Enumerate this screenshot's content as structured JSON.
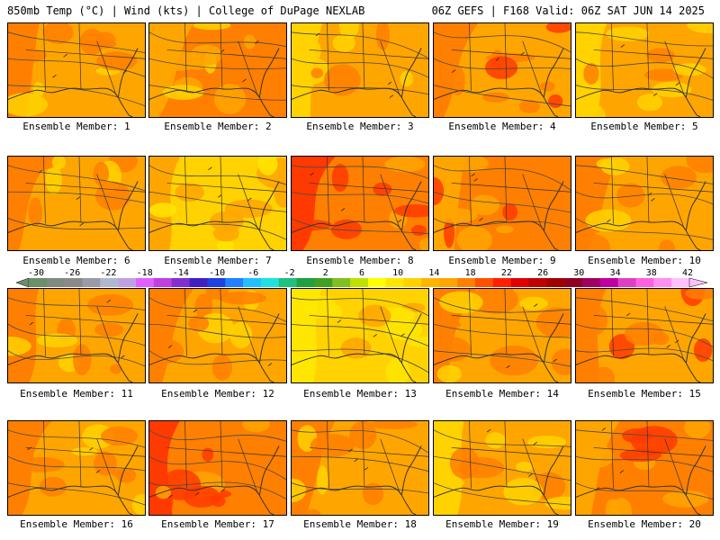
{
  "header": {
    "left": "850mb Temp (°C) | Wind (kts) | College of DuPage NEXLAB",
    "right": "06Z GEFS | F168 Valid: 06Z SAT JUN 14 2025"
  },
  "panels": [
    {
      "label": "Ensemble Member: 1",
      "palette": [
        "#ffa500",
        "#ff7f00",
        "#ffd200"
      ]
    },
    {
      "label": "Ensemble Member: 2",
      "palette": [
        "#ff7f00",
        "#ffa500",
        "#ffd200"
      ]
    },
    {
      "label": "Ensemble Member: 3",
      "palette": [
        "#ffa500",
        "#ffd200",
        "#ff7f00"
      ]
    },
    {
      "label": "Ensemble Member: 4",
      "palette": [
        "#ffa500",
        "#ff7f00",
        "#ff3a00"
      ]
    },
    {
      "label": "Ensemble Member: 5",
      "palette": [
        "#ffa500",
        "#ffd200",
        "#ff7f00"
      ]
    },
    {
      "label": "Ensemble Member: 6",
      "palette": [
        "#ffa500",
        "#ff7f00",
        "#ffd200"
      ]
    },
    {
      "label": "Ensemble Member: 7",
      "palette": [
        "#ffd200",
        "#ffa500",
        "#ffe600"
      ]
    },
    {
      "label": "Ensemble Member: 8",
      "palette": [
        "#ff7f00",
        "#ff3a00",
        "#ffa500"
      ]
    },
    {
      "label": "Ensemble Member: 9",
      "palette": [
        "#ff7f00",
        "#ffa500",
        "#ff3a00"
      ]
    },
    {
      "label": "Ensemble Member: 10",
      "palette": [
        "#ffa500",
        "#ff7f00",
        "#ffd200"
      ]
    },
    {
      "label": "Ensemble Member: 11",
      "palette": [
        "#ffa500",
        "#ff7f00",
        "#ffd200"
      ]
    },
    {
      "label": "Ensemble Member: 12",
      "palette": [
        "#ffa500",
        "#ff7f00",
        "#ffd200"
      ]
    },
    {
      "label": "Ensemble Member: 13",
      "palette": [
        "#ffd200",
        "#ffe600",
        "#ffa500"
      ]
    },
    {
      "label": "Ensemble Member: 14",
      "palette": [
        "#ffa500",
        "#ff7f00",
        "#ffd200"
      ]
    },
    {
      "label": "Ensemble Member: 15",
      "palette": [
        "#ffa500",
        "#ff7f00",
        "#ff3a00"
      ]
    },
    {
      "label": "Ensemble Member: 16",
      "palette": [
        "#ffa500",
        "#ff7f00",
        "#ffd200"
      ]
    },
    {
      "label": "Ensemble Member: 17",
      "palette": [
        "#ff7f00",
        "#ff3a00",
        "#ffa500"
      ]
    },
    {
      "label": "Ensemble Member: 18",
      "palette": [
        "#ffa500",
        "#ff7f00",
        "#ffd200"
      ]
    },
    {
      "label": "Ensemble Member: 19",
      "palette": [
        "#ffa500",
        "#ffd200",
        "#ff7f00"
      ]
    },
    {
      "label": "Ensemble Member: 20",
      "palette": [
        "#ff7f00",
        "#ffa500",
        "#ff3a00"
      ]
    }
  ],
  "colorbar": {
    "labels": [
      "-30",
      "-26",
      "-22",
      "-18",
      "-14",
      "-10",
      "-6",
      "-2",
      "2",
      "6",
      "10",
      "14",
      "18",
      "22",
      "26",
      "30",
      "34",
      "38",
      "42"
    ],
    "colors": [
      "#6b8e6b",
      "#808a80",
      "#8a8a8a",
      "#9a9aaa",
      "#b0b8d0",
      "#c0a0e0",
      "#e060ff",
      "#c040e0",
      "#8030d0",
      "#4020c0",
      "#2040e0",
      "#2080ff",
      "#20c0ff",
      "#20e0e0",
      "#20c080",
      "#20a040",
      "#40a020",
      "#80c020",
      "#c0e000",
      "#ffff00",
      "#ffe600",
      "#ffd200",
      "#ffb400",
      "#ffa500",
      "#ff7f00",
      "#ff5000",
      "#ff2000",
      "#e00000",
      "#c00000",
      "#a00000",
      "#900020",
      "#a00060",
      "#c000a0",
      "#e040c0",
      "#ff60e0",
      "#ff90f0",
      "#ffc0ff"
    ]
  }
}
